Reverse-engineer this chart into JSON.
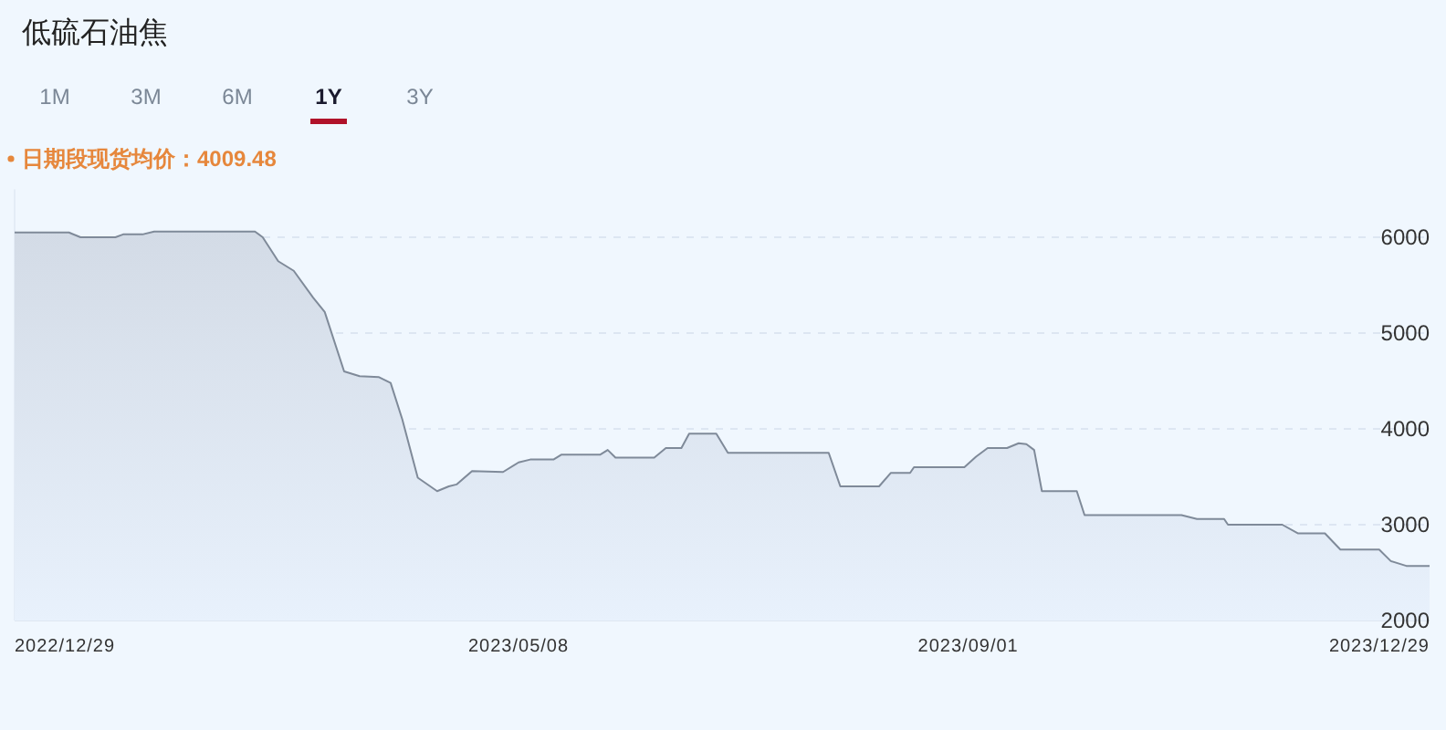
{
  "chart_data": {
    "type": "area",
    "title": "低硫石油焦",
    "annotations": [
      "日期段现货均价：4009.48",
      "1M",
      "3M",
      "6M",
      "1Y",
      "3Y"
    ],
    "x": [
      "2022-12-29",
      "2023-01-12",
      "2023-01-15",
      "2023-01-24",
      "2023-01-26",
      "2023-01-31",
      "2023-02-03",
      "2023-03-01",
      "2023-03-03",
      "2023-03-07",
      "2023-03-11",
      "2023-03-16",
      "2023-03-19",
      "2023-03-24",
      "2023-03-28",
      "2023-04-02",
      "2023-04-05",
      "2023-04-08",
      "2023-04-12",
      "2023-04-17",
      "2023-04-20",
      "2023-04-22",
      "2023-04-26",
      "2023-05-04",
      "2023-05-08",
      "2023-05-11",
      "2023-05-17",
      "2023-05-19",
      "2023-05-29",
      "2023-05-31",
      "2023-06-02",
      "2023-06-12",
      "2023-06-15",
      "2023-06-19",
      "2023-06-21",
      "2023-06-28",
      "2023-07-01",
      "2023-07-27",
      "2023-07-30",
      "2023-08-09",
      "2023-08-12",
      "2023-08-17",
      "2023-08-18",
      "2023-08-31",
      "2023-09-03",
      "2023-09-06",
      "2023-09-11",
      "2023-09-14",
      "2023-09-16",
      "2023-09-18",
      "2023-09-20",
      "2023-09-29",
      "2023-10-01",
      "2023-10-26",
      "2023-10-30",
      "2023-11-06",
      "2023-11-07",
      "2023-11-21",
      "2023-11-25",
      "2023-12-02",
      "2023-12-06",
      "2023-12-16",
      "2023-12-19",
      "2023-12-23",
      "2023-12-29"
    ],
    "series": [
      {
        "color": "#7f8a99",
        "values": [
          6050,
          6050,
          6000,
          6000,
          6030,
          6030,
          6060,
          6060,
          6000,
          5750,
          5650,
          5370,
          5220,
          4600,
          4550,
          4540,
          4480,
          4100,
          3490,
          3350,
          3400,
          3420,
          3560,
          3550,
          3650,
          3680,
          3680,
          3730,
          3730,
          3780,
          3700,
          3700,
          3800,
          3800,
          3950,
          3950,
          3750,
          3750,
          3400,
          3400,
          3540,
          3540,
          3600,
          3600,
          3710,
          3800,
          3800,
          3850,
          3840,
          3780,
          3350,
          3350,
          3100,
          3100,
          3060,
          3060,
          3000,
          3000,
          2910,
          2910,
          2740,
          2740,
          2620,
          2570,
          2570
        ]
      }
    ],
    "xlim": [
      "2022-12-29",
      "2023-12-29"
    ],
    "xticks": [
      {
        "value": "2022-12-29",
        "label": "2022/12/29"
      },
      {
        "value": "2023-05-08",
        "label": "2023/05/08"
      },
      {
        "value": "2023-09-01",
        "label": "2023/09/01"
      },
      {
        "value": "2023-12-29",
        "label": "2023/12/29"
      }
    ],
    "ylim": [
      2000,
      6500
    ],
    "yticks": [
      2000,
      3000,
      4000,
      5000,
      6000
    ],
    "grid": "y",
    "marker": "none",
    "line_style": "solid"
  }
}
